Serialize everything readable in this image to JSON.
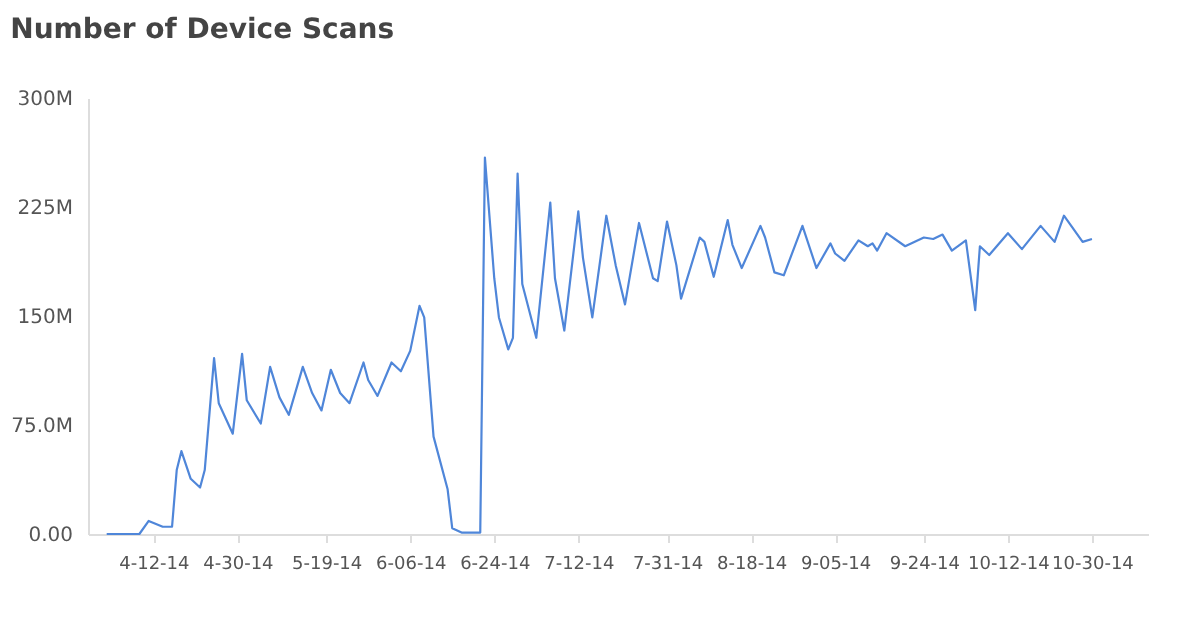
{
  "chart_data": {
    "type": "line",
    "title": "Number of Device Scans",
    "x": [
      "2014-04-02",
      "2014-04-09",
      "2014-04-11",
      "2014-04-14",
      "2014-04-16",
      "2014-04-17",
      "2014-04-18",
      "2014-04-20",
      "2014-04-22",
      "2014-04-23",
      "2014-04-25",
      "2014-04-26",
      "2014-04-29",
      "2014-05-01",
      "2014-05-02",
      "2014-05-05",
      "2014-05-07",
      "2014-05-09",
      "2014-05-11",
      "2014-05-14",
      "2014-05-16",
      "2014-05-18",
      "2014-05-20",
      "2014-05-22",
      "2014-05-24",
      "2014-05-27",
      "2014-05-28",
      "2014-05-30",
      "2014-06-02",
      "2014-06-04",
      "2014-06-06",
      "2014-06-08",
      "2014-06-09",
      "2014-06-11",
      "2014-06-14",
      "2014-06-15",
      "2014-06-17",
      "2014-06-21",
      "2014-06-22",
      "2014-06-24",
      "2014-06-25",
      "2014-06-27",
      "2014-06-28",
      "2014-06-29",
      "2014-06-30",
      "2014-07-03",
      "2014-07-06",
      "2014-07-07",
      "2014-07-09",
      "2014-07-12",
      "2014-07-13",
      "2014-07-15",
      "2014-07-18",
      "2014-07-20",
      "2014-07-22",
      "2014-07-25",
      "2014-07-28",
      "2014-07-29",
      "2014-07-31",
      "2014-08-02",
      "2014-08-03",
      "2014-08-07",
      "2014-08-08",
      "2014-08-10",
      "2014-08-13",
      "2014-08-14",
      "2014-08-16",
      "2014-08-20",
      "2014-08-21",
      "2014-08-23",
      "2014-08-25",
      "2014-08-29",
      "2014-09-01",
      "2014-09-04",
      "2014-09-05",
      "2014-09-07",
      "2014-09-10",
      "2014-09-12",
      "2014-09-13",
      "2014-09-14",
      "2014-09-16",
      "2014-09-20",
      "2014-09-24",
      "2014-09-26",
      "2014-09-28",
      "2014-09-30",
      "2014-10-03",
      "2014-10-05",
      "2014-10-06",
      "2014-10-08",
      "2014-10-12",
      "2014-10-15",
      "2014-10-19",
      "2014-10-22",
      "2014-10-24",
      "2014-10-28",
      "2014-10-30"
    ],
    "series": [
      {
        "color": "#4f86d9",
        "values": [
          0,
          0,
          9000000,
          5000000,
          5000000,
          44000000,
          57000000,
          38000000,
          32000000,
          44000000,
          121000000,
          90000000,
          69000000,
          124000000,
          92000000,
          76000000,
          115000000,
          94000000,
          82000000,
          115000000,
          97000000,
          85000000,
          113000000,
          97000000,
          90000000,
          118000000,
          106000000,
          95000000,
          118000000,
          112000000,
          126000000,
          157000000,
          149000000,
          67000000,
          31000000,
          4000000,
          1000000,
          1000000,
          259000000,
          176000000,
          149000000,
          127000000,
          135000000,
          248000000,
          172000000,
          135000000,
          228000000,
          176000000,
          140000000,
          222000000,
          190000000,
          149000000,
          219000000,
          185000000,
          158000000,
          214000000,
          176000000,
          174000000,
          215000000,
          185000000,
          162000000,
          204000000,
          201000000,
          177000000,
          216000000,
          199000000,
          183000000,
          212000000,
          204000000,
          180000000,
          178000000,
          212000000,
          183000000,
          200000000,
          193000000,
          188000000,
          202000000,
          198000000,
          200000000,
          195000000,
          207000000,
          198000000,
          204000000,
          203000000,
          206000000,
          195000000,
          202000000,
          154000000,
          198000000,
          192000000,
          207000000,
          196000000,
          212000000,
          201000000,
          219000000,
          201000000,
          203000000
        ]
      }
    ],
    "xlim": [
      "2014-03-29",
      "2014-11-11"
    ],
    "xticks": [
      {
        "value": "2014-04-12",
        "label": "4-12-14"
      },
      {
        "value": "2014-04-30",
        "label": "4-30-14"
      },
      {
        "value": "2014-05-19",
        "label": "5-19-14"
      },
      {
        "value": "2014-06-06",
        "label": "6-06-14"
      },
      {
        "value": "2014-06-24",
        "label": "6-24-14"
      },
      {
        "value": "2014-07-12",
        "label": "7-12-14"
      },
      {
        "value": "2014-07-31",
        "label": "7-31-14"
      },
      {
        "value": "2014-08-18",
        "label": "8-18-14"
      },
      {
        "value": "2014-09-05",
        "label": "9-05-14"
      },
      {
        "value": "2014-09-24",
        "label": "9-24-14"
      },
      {
        "value": "2014-10-12",
        "label": "10-12-14"
      },
      {
        "value": "2014-10-30",
        "label": "10-30-14"
      }
    ],
    "ylim": [
      0,
      300000000
    ],
    "yticks": [
      {
        "value": 0,
        "label": "0.00"
      },
      {
        "value": 75000000,
        "label": "75.0M"
      },
      {
        "value": 150000000,
        "label": "150M"
      },
      {
        "value": 225000000,
        "label": "225M"
      },
      {
        "value": 300000000,
        "label": "300M"
      }
    ],
    "grid": false,
    "marker": "none",
    "line_style": "solid"
  }
}
